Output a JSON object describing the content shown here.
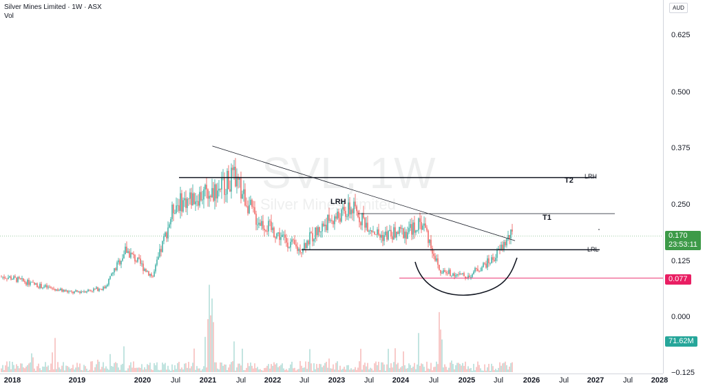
{
  "header": {
    "title": "Silver Mines Limited · 1W · ASX",
    "volume_label": "Vol"
  },
  "watermark": {
    "symbol": "SVL, 1W",
    "name": "Silver Mines Limited"
  },
  "price_axis": {
    "currency": "AUD",
    "ticks": [
      "0.625",
      "0.500",
      "0.375",
      "0.250",
      "0.125",
      "0.000",
      "−0.125"
    ]
  },
  "time_axis": {
    "ticks": [
      {
        "label": "2018",
        "year": true
      },
      {
        "label": "2019",
        "year": true
      },
      {
        "label": "2020",
        "year": true
      },
      {
        "label": "Jul",
        "year": false
      },
      {
        "label": "2021",
        "year": true
      },
      {
        "label": "Jul",
        "year": false
      },
      {
        "label": "2022",
        "year": true
      },
      {
        "label": "Jul",
        "year": false
      },
      {
        "label": "2023",
        "year": true
      },
      {
        "label": "Jul",
        "year": false
      },
      {
        "label": "2024",
        "year": true
      },
      {
        "label": "Jul",
        "year": false
      },
      {
        "label": "2025",
        "year": true
      },
      {
        "label": "Jul",
        "year": false
      },
      {
        "label": "2026",
        "year": true
      },
      {
        "label": "Jul",
        "year": false
      },
      {
        "label": "2027",
        "year": true
      },
      {
        "label": "Jul",
        "year": false
      },
      {
        "label": "2028",
        "year": true
      }
    ]
  },
  "badges": {
    "last_price": "0.170",
    "countdown": "23:53:11",
    "horizontal_level": "0.077",
    "volume": "71.62M"
  },
  "annotations": {
    "lrh_top": "LRH",
    "t2": "T2",
    "lrh_mid": "LRH",
    "t1": "T1",
    "lrl": "LRL"
  },
  "colors": {
    "up": "#26a69a",
    "down": "#ef5350",
    "vol_up": "#a8d8d3",
    "vol_down": "#f6b4b2",
    "level_line": "#e91e63",
    "drawing": "#131722",
    "last_price_badge": "#3d9a48"
  },
  "chart_data": {
    "type": "candlestick",
    "symbol": "SVL",
    "interval": "1W",
    "exchange": "ASX",
    "currency": "AUD",
    "ylim": [
      -0.125,
      0.65
    ],
    "last_price": 0.17,
    "volume_last": "71.62M",
    "approx_close_path": [
      {
        "date": "2017-12",
        "close": 0.08
      },
      {
        "date": "2018-06",
        "close": 0.06
      },
      {
        "date": "2018-12",
        "close": 0.045
      },
      {
        "date": "2019-06",
        "close": 0.055
      },
      {
        "date": "2019-10",
        "close": 0.14
      },
      {
        "date": "2020-03",
        "close": 0.08
      },
      {
        "date": "2020-07",
        "close": 0.24
      },
      {
        "date": "2021-02",
        "close": 0.27
      },
      {
        "date": "2021-06",
        "close": 0.3
      },
      {
        "date": "2021-10",
        "close": 0.21
      },
      {
        "date": "2022-06",
        "close": 0.14
      },
      {
        "date": "2022-11",
        "close": 0.2
      },
      {
        "date": "2023-04",
        "close": 0.23
      },
      {
        "date": "2023-09",
        "close": 0.17
      },
      {
        "date": "2024-02",
        "close": 0.18
      },
      {
        "date": "2024-05",
        "close": 0.2
      },
      {
        "date": "2024-08",
        "close": 0.095
      },
      {
        "date": "2025-01",
        "close": 0.08
      },
      {
        "date": "2025-06",
        "close": 0.12
      },
      {
        "date": "2025-09",
        "close": 0.17
      }
    ],
    "levels": [
      {
        "name": "LRH",
        "label": "T2",
        "price": 0.3
      },
      {
        "name": "T1",
        "price": 0.22
      },
      {
        "name": "LRL",
        "price": 0.14
      },
      {
        "name": "horizontal",
        "price": 0.077
      }
    ],
    "trendline": {
      "from": {
        "date": "2021-02",
        "price": 0.37
      },
      "to": {
        "date": "2025-10",
        "price": 0.16
      }
    }
  }
}
